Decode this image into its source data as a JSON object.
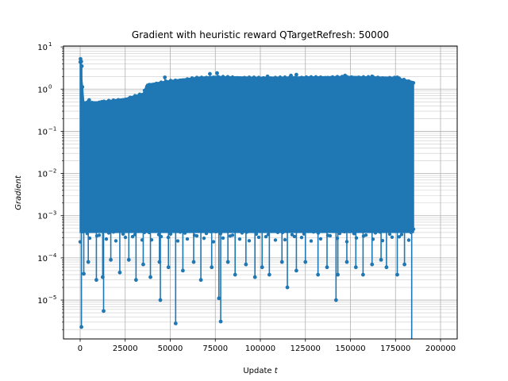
{
  "chart_data": {
    "type": "line",
    "title": "Gradient with heuristic reward QTargetRefresh: 50000",
    "xlabel": "Update",
    "xlabel_var": "t",
    "ylabel": "Gradient",
    "x_scale": "linear",
    "y_scale": "log",
    "xlim": [
      -9250,
      209250
    ],
    "ylim": [
      1.2e-06,
      10.5
    ],
    "x_ticks": [
      0,
      25000,
      50000,
      75000,
      100000,
      125000,
      150000,
      175000,
      200000
    ],
    "x_tick_labels": [
      "0",
      "25000",
      "50000",
      "75000",
      "100000",
      "125000",
      "150000",
      "175000",
      "200000"
    ],
    "y_ticks": [
      1e-05,
      0.0001,
      0.001,
      0.01,
      0.1,
      1,
      10
    ],
    "y_tick_labels": [
      {
        "base": "10",
        "exp": "−5"
      },
      {
        "base": "10",
        "exp": "−4"
      },
      {
        "base": "10",
        "exp": "−3"
      },
      {
        "base": "10",
        "exp": "−2"
      },
      {
        "base": "10",
        "exp": "−1"
      },
      {
        "base": "10",
        "exp": "0"
      },
      {
        "base": "10",
        "exp": "1"
      }
    ],
    "grid": "both-major-minor",
    "series": [
      {
        "color": "#1f77b4",
        "marker": "circle",
        "x_max": 185000,
        "band_upper": [
          [
            0,
            5.5
          ],
          [
            2000,
            0.5
          ],
          [
            10000,
            0.5
          ],
          [
            25000,
            0.6
          ],
          [
            35000,
            0.8
          ],
          [
            37000,
            1.3
          ],
          [
            50000,
            1.6
          ],
          [
            65000,
            1.9
          ],
          [
            75000,
            2.0
          ],
          [
            100000,
            1.9
          ],
          [
            150000,
            2.0
          ],
          [
            175000,
            1.9
          ],
          [
            185000,
            1.5
          ]
        ],
        "band_lower": [
          [
            0,
            0.0004
          ],
          [
            20000,
            0.0004
          ],
          [
            50000,
            0.0004
          ],
          [
            100000,
            0.0004
          ],
          [
            150000,
            0.0004
          ],
          [
            185000,
            0.0004
          ]
        ],
        "upper_outliers": [
          [
            200,
            5.2
          ],
          [
            600,
            4.5
          ],
          [
            900,
            3.5
          ],
          [
            5000,
            0.55
          ],
          [
            12000,
            0.5
          ],
          [
            47000,
            1.9
          ],
          [
            72000,
            2.3
          ],
          [
            76000,
            2.4
          ],
          [
            104000,
            2.0
          ],
          [
            117000,
            2.1
          ],
          [
            120000,
            2.2
          ],
          [
            147000,
            2.1
          ],
          [
            162000,
            2.0
          ],
          [
            176000,
            1.9
          ]
        ],
        "lower_outliers": [
          [
            700,
            2.3e-06
          ],
          [
            2000,
            4.2e-05
          ],
          [
            4500,
            8e-05
          ],
          [
            9000,
            3e-05
          ],
          [
            12500,
            3.5e-05
          ],
          [
            13000,
            5.5e-06
          ],
          [
            17000,
            9e-05
          ],
          [
            22000,
            4.5e-05
          ],
          [
            27000,
            9e-05
          ],
          [
            31000,
            3e-05
          ],
          [
            35000,
            7e-05
          ],
          [
            39000,
            3.5e-05
          ],
          [
            44000,
            8e-05
          ],
          [
            44500,
            1e-05
          ],
          [
            49000,
            6e-05
          ],
          [
            53000,
            2.8e-06
          ],
          [
            57000,
            5e-05
          ],
          [
            63000,
            8e-05
          ],
          [
            67000,
            3e-05
          ],
          [
            73000,
            6e-05
          ],
          [
            77000,
            1.1e-05
          ],
          [
            78000,
            3.1e-06
          ],
          [
            82000,
            8e-05
          ],
          [
            86000,
            4e-05
          ],
          [
            92000,
            7e-05
          ],
          [
            97000,
            3.5e-05
          ],
          [
            101000,
            6e-05
          ],
          [
            105000,
            4e-05
          ],
          [
            112000,
            8e-05
          ],
          [
            115000,
            2e-05
          ],
          [
            120000,
            5e-05
          ],
          [
            125000,
            8e-05
          ],
          [
            132000,
            4e-05
          ],
          [
            137000,
            6e-05
          ],
          [
            142000,
            1e-05
          ],
          [
            143000,
            4e-05
          ],
          [
            148000,
            8e-05
          ],
          [
            153000,
            6e-05
          ],
          [
            157000,
            4e-05
          ],
          [
            162000,
            7e-05
          ],
          [
            167000,
            9e-05
          ],
          [
            170000,
            6e-05
          ],
          [
            176000,
            4e-05
          ],
          [
            180000,
            7e-05
          ],
          [
            184000,
            1.2e-06
          ]
        ]
      }
    ]
  }
}
